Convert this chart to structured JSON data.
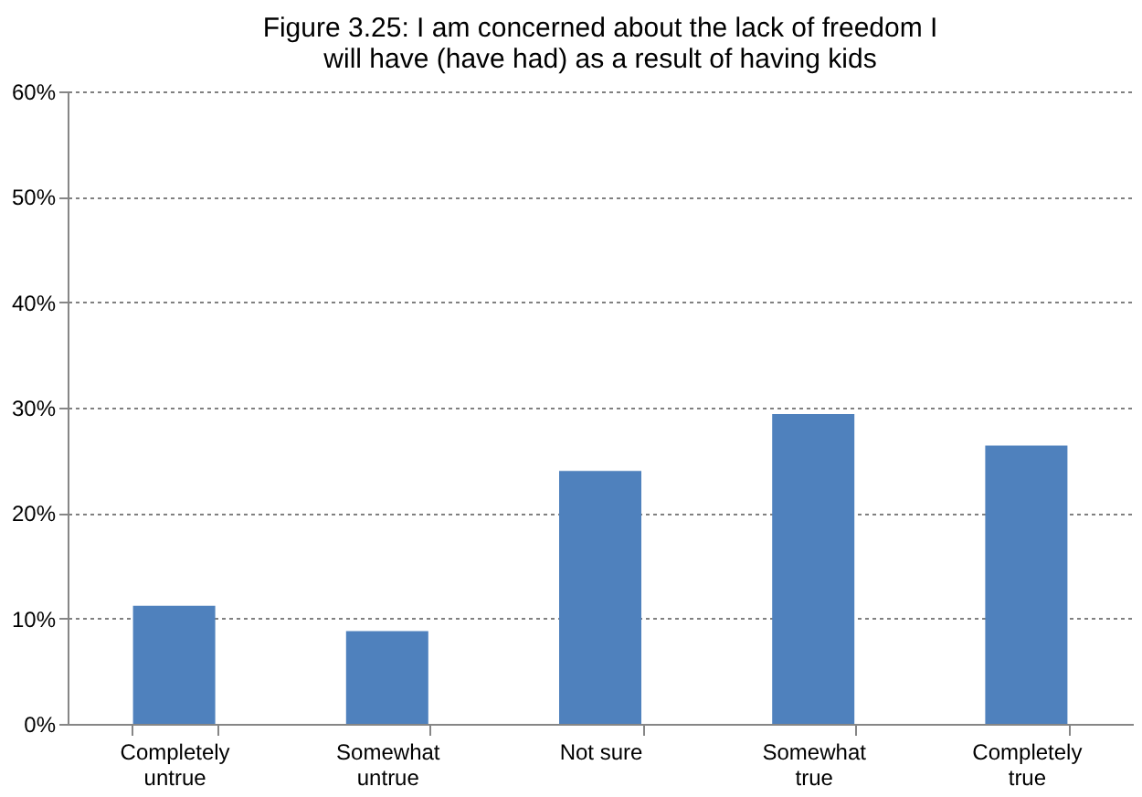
{
  "chart_data": {
    "type": "bar",
    "title": [
      "Figure 3.25: I am concerned about the lack of freedom I",
      "will have (have had) as a result of having kids"
    ],
    "categories": [
      "Completely untrue",
      "Somewhat untrue",
      "Not sure",
      "Somewhat true",
      "Completely true"
    ],
    "values": [
      11.2,
      8.8,
      24.0,
      29.4,
      26.4
    ],
    "color": "#4f81bd",
    "ylim": [
      0,
      60
    ],
    "yticks": [
      {
        "value": 0,
        "label": "0%"
      },
      {
        "value": 10,
        "label": "10%"
      },
      {
        "value": 20,
        "label": "20%"
      },
      {
        "value": 30,
        "label": "30%"
      },
      {
        "value": 40,
        "label": "40%"
      },
      {
        "value": 50,
        "label": "50%"
      },
      {
        "value": 60,
        "label": "60%"
      }
    ],
    "grid": "y"
  }
}
